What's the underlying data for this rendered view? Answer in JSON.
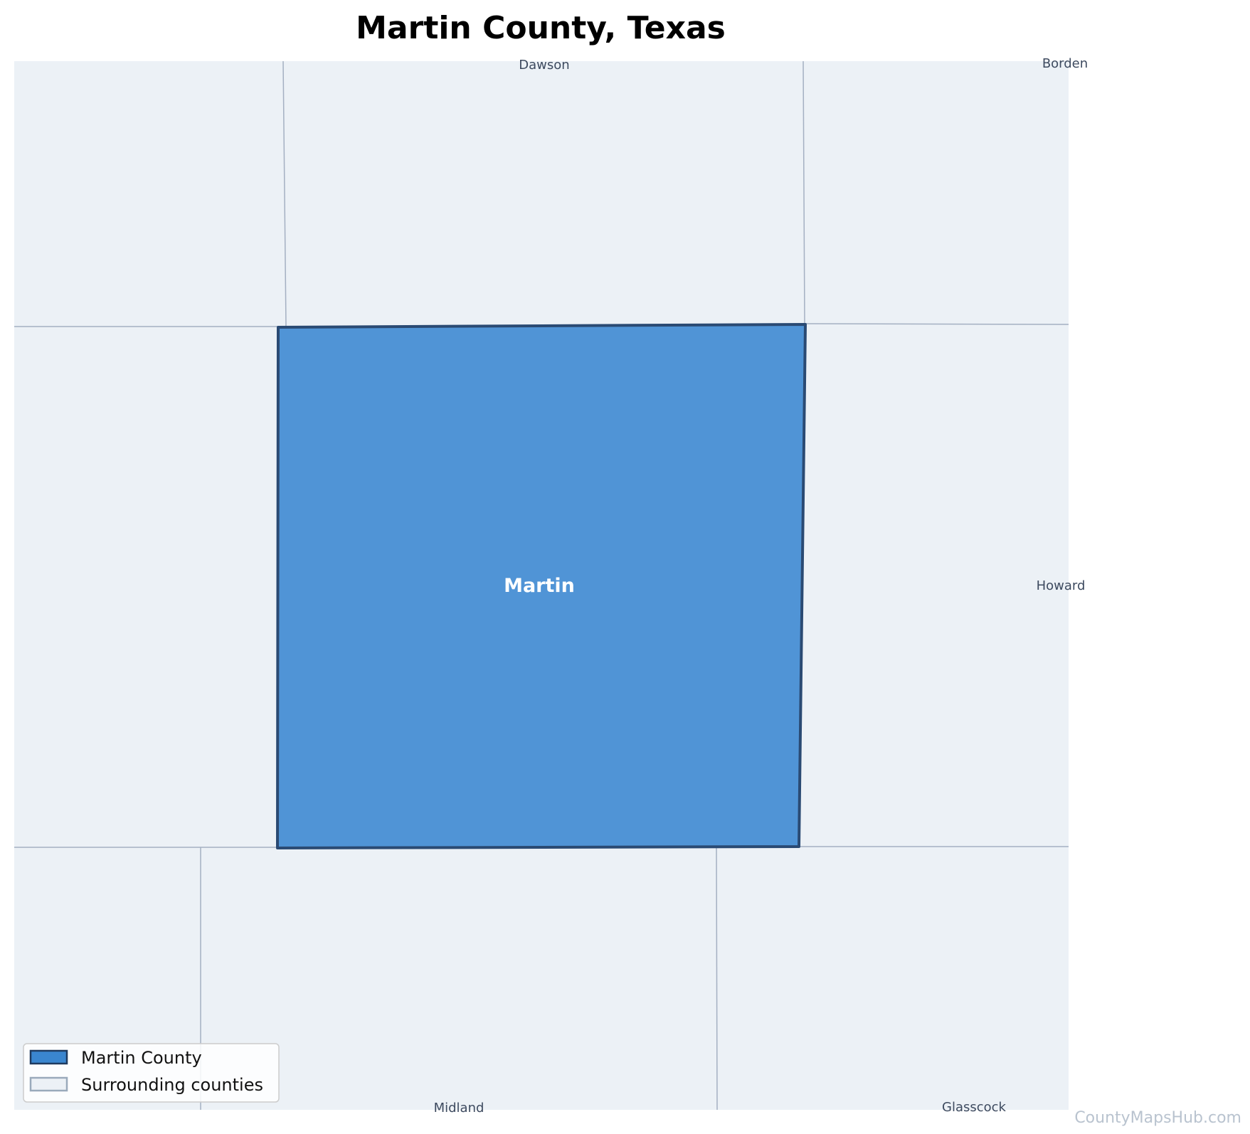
{
  "title": "Martin County, Texas",
  "main_county": {
    "label": "Martin",
    "fill": "#5094d6",
    "stroke": "#2a4a73"
  },
  "surrounding_counties": [
    {
      "label": "Dawson",
      "position": "north"
    },
    {
      "label": "Borden",
      "position": "northeast"
    },
    {
      "label": "Howard",
      "position": "east"
    },
    {
      "label": "Midland",
      "position": "south"
    },
    {
      "label": "Glasscock",
      "position": "southeast"
    }
  ],
  "colors": {
    "surrounding_fill": "#ecf1f6",
    "boundary_line": "#a4b0c2"
  },
  "legend": {
    "items": [
      {
        "label": "Martin County",
        "swatch_fill": "#3a86cf",
        "swatch_stroke": "#1e3a5f"
      },
      {
        "label": "Surrounding counties",
        "swatch_fill": "#ecf1f6",
        "swatch_stroke": "#9aaabb"
      }
    ]
  },
  "watermark": "CountyMapsHub.com"
}
